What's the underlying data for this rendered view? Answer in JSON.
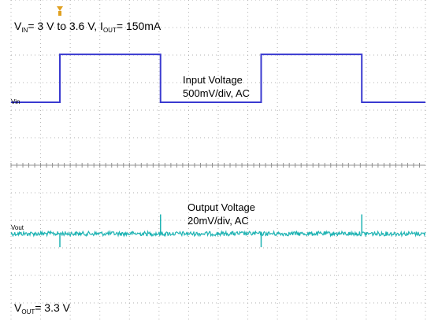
{
  "chart_data": {
    "type": "line",
    "title": "",
    "xlabel": "",
    "ylabel": "",
    "grid": true,
    "conditions": {
      "top_text_parts": [
        "V",
        "IN",
        "= 3 V to  3.6 V,  I",
        "OUT",
        "= 150mA"
      ],
      "bottom_text_parts": [
        "V",
        "OUT",
        "= 3.3 V"
      ]
    },
    "series": [
      {
        "name": "Vin",
        "color": "#3a3ad0",
        "annotation": [
          "Input Voltage",
          "500mV/div, AC"
        ],
        "waveform": "square",
        "low_level_div": 0,
        "high_level_div": 1.2,
        "edges_div": [
          1.65,
          5.05,
          8.45,
          11.85
        ],
        "end_div": 14
      },
      {
        "name": "Vout",
        "color": "#1fb3b3",
        "annotation": [
          "Output Voltage",
          "20mV/div, AC"
        ],
        "waveform": "noise_with_spikes",
        "level_div": 0,
        "noise_amplitude_div": 0.05,
        "spike_div": [
          1.65,
          5.05,
          8.45,
          11.85
        ],
        "spike_amplitude_div": 0.7,
        "end_div": 14
      }
    ]
  }
}
